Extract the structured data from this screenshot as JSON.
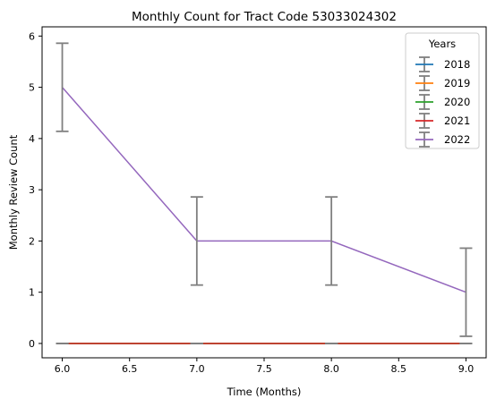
{
  "chart_data": {
    "type": "line",
    "title": "Monthly Count for Tract Code 53033024302",
    "xlabel": "Time (Months)",
    "ylabel": "Monthly Review Count",
    "xlim": [
      5.85,
      9.15
    ],
    "ylim": [
      -0.28,
      6.18
    ],
    "xticks": [
      6.0,
      6.5,
      7.0,
      7.5,
      8.0,
      8.5,
      9.0
    ],
    "yticks": [
      0,
      1,
      2,
      3,
      4,
      5,
      6
    ],
    "x": [
      6,
      7,
      8,
      9
    ],
    "grid": false,
    "legend": {
      "title": "Years",
      "position": "top-right"
    },
    "error_bar_color": "#808080",
    "series": [
      {
        "name": "2018",
        "color": "#1f77b4",
        "values": [
          0,
          0,
          0,
          0
        ],
        "error": [
          0,
          0,
          0,
          0
        ]
      },
      {
        "name": "2019",
        "color": "#ff7f0e",
        "values": [
          0,
          0,
          0,
          0
        ],
        "error": [
          0,
          0,
          0,
          0
        ]
      },
      {
        "name": "2020",
        "color": "#2ca02c",
        "values": [
          0,
          0,
          0,
          0
        ],
        "error": [
          0,
          0,
          0,
          0
        ]
      },
      {
        "name": "2021",
        "color": "#d62728",
        "values": [
          0,
          0,
          0,
          0
        ],
        "error": [
          0,
          0,
          0,
          0
        ]
      },
      {
        "name": "2022",
        "color": "#9467bd",
        "values": [
          5,
          2,
          2,
          1
        ],
        "error": [
          0.86,
          0.86,
          0.86,
          0.86
        ]
      }
    ]
  }
}
